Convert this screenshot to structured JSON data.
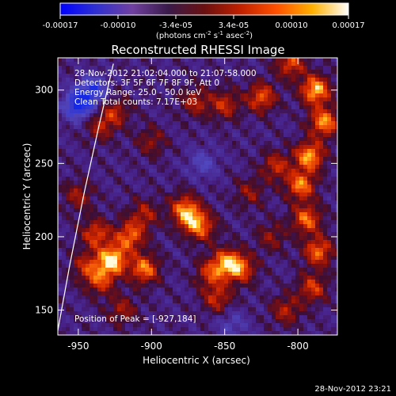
{
  "colorbar": {
    "ticks": [
      "-0.00017",
      "-0.00010",
      "-3.4e-05",
      "3.4e-05",
      "0.00010",
      "0.00017"
    ],
    "unit_main": "(photons cm",
    "unit_sup1": "-2",
    "unit_mid1": " s",
    "unit_sup2": "-1",
    "unit_mid2": " asec",
    "unit_sup3": "-2",
    "unit_end": ")",
    "colors": [
      "#0000ff",
      "#3030d0",
      "#7040a0",
      "#3a1a4a",
      "#6a1010",
      "#c02000",
      "#ff5000",
      "#ffb000",
      "#ffffff"
    ]
  },
  "plot": {
    "title": "Reconstructed RHESSI Image",
    "xlabel": "Heliocentric X (arcsec)",
    "ylabel": "Heliocentric Y (arcsec)",
    "x_ticks": [
      "-950",
      "-900",
      "-850",
      "-800"
    ],
    "y_ticks": [
      "150",
      "200",
      "250",
      "300"
    ],
    "info": [
      "28-Nov-2012 21:02:04.000 to 21:07:58.000",
      "Detectors: 3F 5F 6F 7F 8F 9F, Att 0",
      "Energy Range: 25.0 - 50.0 keV",
      "Clean    Total counts: 7.17E+03"
    ],
    "peak_label": "Position of Peak = [-927,184]"
  },
  "footer": {
    "timestamp": "28-Nov-2012 23:21"
  },
  "chart_data": {
    "type": "heatmap",
    "title": "Reconstructed RHESSI Image",
    "xlabel": "Heliocentric X (arcsec)",
    "ylabel": "Heliocentric Y (arcsec)",
    "xlim": [
      -964,
      -773
    ],
    "ylim": [
      133,
      322
    ],
    "colorbar_range": [
      -0.00017,
      0.00017
    ],
    "peak_position": [
      -927,
      184
    ],
    "sources": [
      {
        "x": -927,
        "y": 184,
        "intensity": 1.0
      },
      {
        "x": -915,
        "y": 200,
        "intensity": 0.7
      },
      {
        "x": -905,
        "y": 178,
        "intensity": 0.75
      },
      {
        "x": -938,
        "y": 202,
        "intensity": 0.6
      },
      {
        "x": -935,
        "y": 170,
        "intensity": 0.55
      },
      {
        "x": -848,
        "y": 182,
        "intensity": 0.8
      },
      {
        "x": -860,
        "y": 175,
        "intensity": 0.5
      },
      {
        "x": -838,
        "y": 178,
        "intensity": 0.55
      },
      {
        "x": -855,
        "y": 158,
        "intensity": 0.5
      },
      {
        "x": -873,
        "y": 212,
        "intensity": 0.6
      },
      {
        "x": -865,
        "y": 206,
        "intensity": 0.5
      },
      {
        "x": -878,
        "y": 220,
        "intensity": 0.55
      },
      {
        "x": -905,
        "y": 215,
        "intensity": 0.45
      },
      {
        "x": -788,
        "y": 300,
        "intensity": 0.9
      },
      {
        "x": -782,
        "y": 278,
        "intensity": 0.8
      },
      {
        "x": -792,
        "y": 255,
        "intensity": 0.85
      },
      {
        "x": -798,
        "y": 235,
        "intensity": 0.75
      },
      {
        "x": -794,
        "y": 212,
        "intensity": 0.7
      },
      {
        "x": -786,
        "y": 190,
        "intensity": 0.7
      },
      {
        "x": -790,
        "y": 165,
        "intensity": 0.55
      },
      {
        "x": -825,
        "y": 295,
        "intensity": 0.65
      },
      {
        "x": -815,
        "y": 248,
        "intensity": 0.5
      },
      {
        "x": -805,
        "y": 318,
        "intensity": 0.6
      },
      {
        "x": -870,
        "y": 292,
        "intensity": 0.45
      },
      {
        "x": -850,
        "y": 290,
        "intensity": 0.5
      },
      {
        "x": -925,
        "y": 285,
        "intensity": 0.45
      },
      {
        "x": -935,
        "y": 275,
        "intensity": 0.4
      },
      {
        "x": -945,
        "y": 180,
        "intensity": 0.45
      },
      {
        "x": -920,
        "y": 150,
        "intensity": 0.4
      },
      {
        "x": -950,
        "y": 228,
        "intensity": 0.4
      },
      {
        "x": -900,
        "y": 265,
        "intensity": 0.35
      },
      {
        "x": -833,
        "y": 230,
        "intensity": 0.35
      },
      {
        "x": -818,
        "y": 200,
        "intensity": 0.35
      },
      {
        "x": -808,
        "y": 150,
        "intensity": 0.45
      },
      {
        "x": -950,
        "y": 290,
        "intensity": -0.8
      },
      {
        "x": -940,
        "y": 300,
        "intensity": -0.6
      },
      {
        "x": -865,
        "y": 250,
        "intensity": -0.35
      },
      {
        "x": -845,
        "y": 140,
        "intensity": -0.3
      }
    ],
    "limb_curve": [
      [
        -964,
        136
      ],
      [
        -956,
        180
      ],
      [
        -946,
        230
      ],
      [
        -936,
        275
      ],
      [
        -926,
        318
      ]
    ],
    "grid": false
  }
}
